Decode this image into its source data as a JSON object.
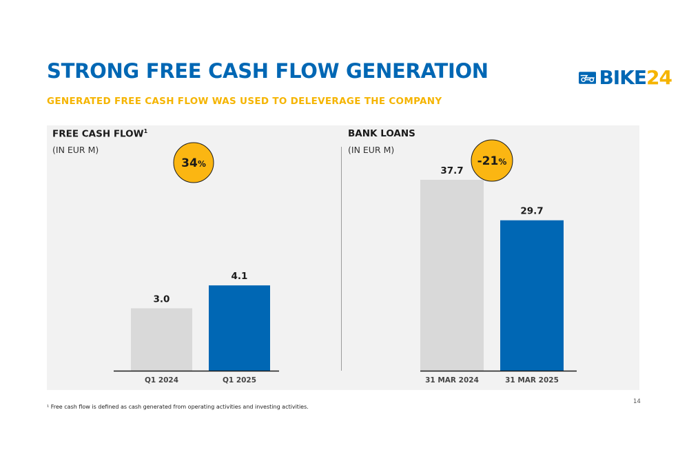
{
  "slide": {
    "title": "STRONG FREE CASH FLOW GENERATION",
    "subtitle": "GENERATED FREE CASH FLOW WAS USED TO DELEVERAGE THE COMPANY",
    "logo_bike": "BIKE",
    "logo_num": "24",
    "footnote": "¹ Free cash flow is defined as cash generated from operating activities and investing activities.",
    "page_number": "14"
  },
  "colors": {
    "primary_blue": "#0067b4",
    "accent_yellow": "#f5b400",
    "bar_grey": "#d9d9d9",
    "badge_yellow": "#fbb612"
  },
  "chart_data": [
    {
      "type": "bar",
      "title": "FREE CASH FLOW",
      "title_superscript": "1",
      "unit": "(IN EUR M)",
      "categories": [
        "Q1 2024",
        "Q1 2025"
      ],
      "values": [
        3.0,
        4.1
      ],
      "value_labels": [
        "3.0",
        "4.1"
      ],
      "bar_colors": [
        "#d9d9d9",
        "#0067b4"
      ],
      "change_badge": {
        "value": "34",
        "suffix": "%"
      }
    },
    {
      "type": "bar",
      "title": "BANK LOANS",
      "unit": "(IN EUR M)",
      "categories": [
        "31 MAR 2024",
        "31 MAR 2025"
      ],
      "values": [
        37.7,
        29.7
      ],
      "value_labels": [
        "37.7",
        "29.7"
      ],
      "bar_colors": [
        "#d9d9d9",
        "#0067b4"
      ],
      "change_badge": {
        "value": "-21",
        "suffix": "%"
      }
    }
  ]
}
